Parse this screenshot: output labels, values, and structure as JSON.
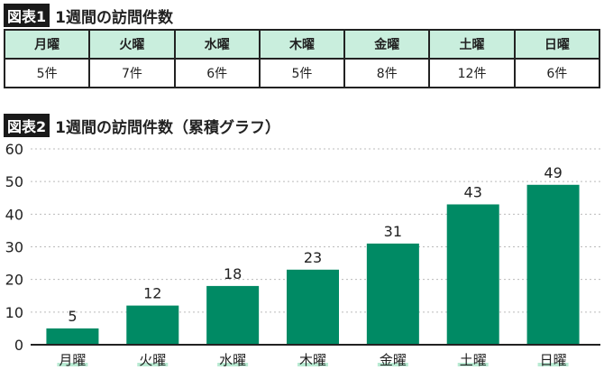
{
  "table1": {
    "tag": "図表1",
    "title": "1週間の訪問件数",
    "headers": [
      "月曜",
      "火曜",
      "水曜",
      "木曜",
      "金曜",
      "土曜",
      "日曜"
    ],
    "values": [
      "5件",
      "7件",
      "6件",
      "5件",
      "8件",
      "12件",
      "6件"
    ]
  },
  "chart_data": {
    "tag": "図表2",
    "title": "1週間の訪問件数（累積グラフ）",
    "type": "bar",
    "categories": [
      "月曜",
      "火曜",
      "水曜",
      "木曜",
      "金曜",
      "土曜",
      "日曜"
    ],
    "values": [
      5,
      12,
      18,
      23,
      31,
      43,
      49
    ],
    "ylim": [
      0,
      60
    ],
    "yticks": [
      0,
      10,
      20,
      30,
      40,
      50,
      60
    ],
    "grid": true,
    "bar_color": "#008a64",
    "label_underline_color": "#b8ead2"
  }
}
